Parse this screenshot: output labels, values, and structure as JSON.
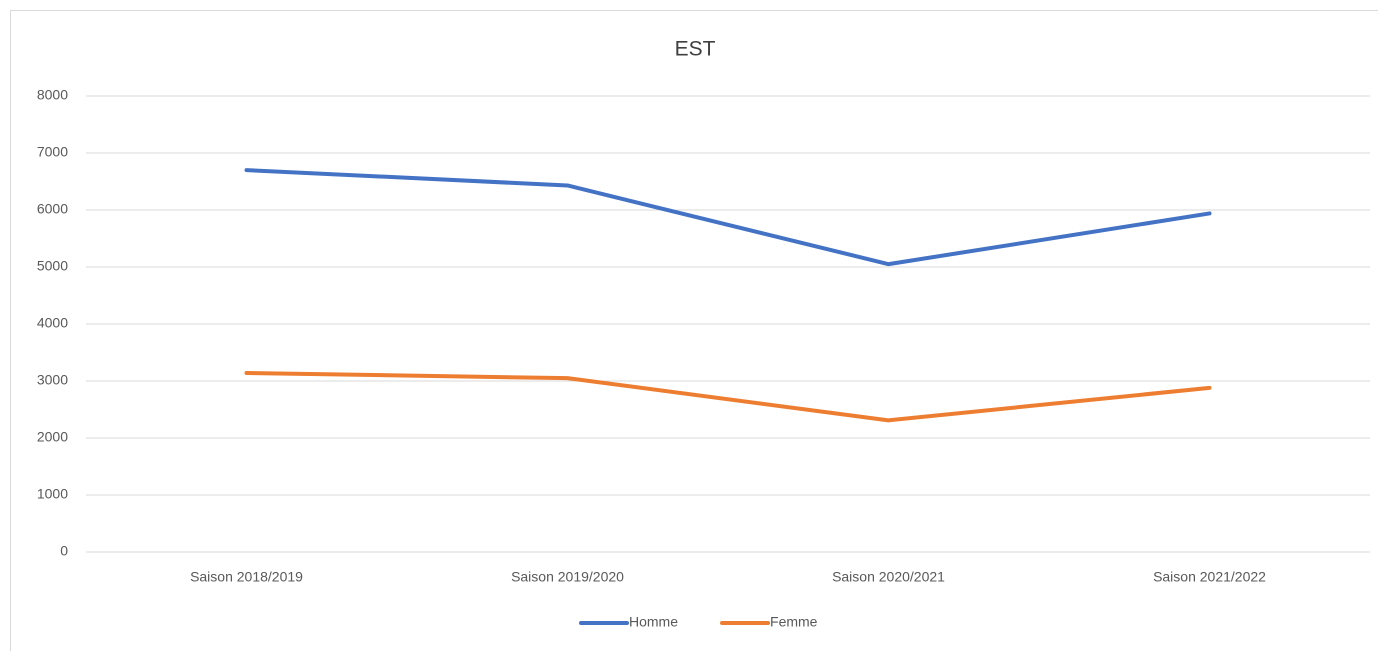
{
  "chart_data": {
    "type": "line",
    "title": "EST",
    "categories": [
      "Saison 2018/2019",
      "Saison 2019/2020",
      "Saison 2020/2021",
      "Saison 2021/2022"
    ],
    "series": [
      {
        "name": "Homme",
        "color": "#4472c4",
        "values": [
          6700,
          6430,
          5050,
          5940
        ]
      },
      {
        "name": "Femme",
        "color": "#ed7d31",
        "values": [
          3140,
          3050,
          2310,
          2880
        ]
      }
    ],
    "ylim": [
      0,
      8000
    ],
    "yticks": [
      0,
      1000,
      2000,
      3000,
      4000,
      5000,
      6000,
      7000,
      8000
    ],
    "grid": true,
    "legend": "bottom"
  }
}
